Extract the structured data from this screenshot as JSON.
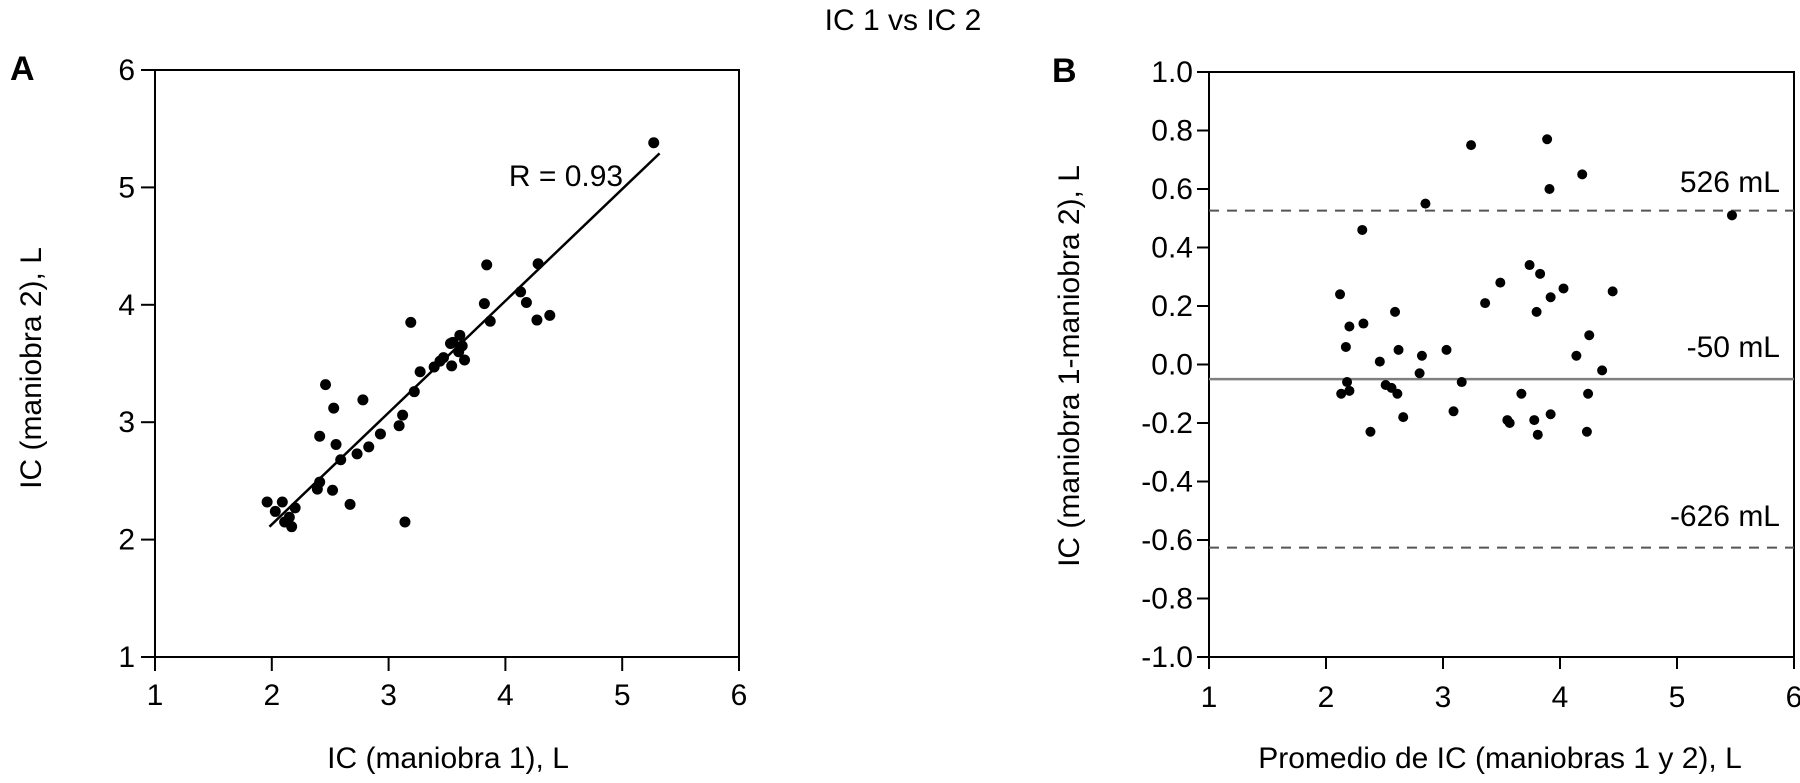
{
  "title": "IC 1 vs IC 2",
  "panels": [
    {
      "letter": "A",
      "xlabel": "IC (maniobra 1), L",
      "ylabel": "IC (maniobra 2), L",
      "annotation": "R = 0.93"
    },
    {
      "letter": "B",
      "xlabel": "Promedio de IC (maniobras 1 y 2), L",
      "ylabel": "IC (maniobra 1-maniobra 2), L",
      "ref_label_upper": "526 mL",
      "ref_label_mean": "-50 mL",
      "ref_label_lower": "-626 mL"
    }
  ],
  "colors": {
    "points": "#000000",
    "axis": "#000000",
    "regression_line": "#000000",
    "mean_line": "#7f7f7f",
    "limit_lines": "#555555"
  },
  "chart_data": [
    {
      "type": "scatter",
      "panel": "A",
      "title": "IC 1 vs IC 2",
      "xlabel": "IC (maniobra 1), L",
      "ylabel": "IC (maniobra 2), L",
      "xlim": [
        1,
        6
      ],
      "ylim": [
        1,
        6
      ],
      "x_tick_labels": [
        "1",
        "2",
        "3",
        "4",
        "5",
        "6"
      ],
      "y_tick_labels": [
        "1",
        "2",
        "3",
        "4",
        "5",
        "6"
      ],
      "grid": false,
      "annotation": {
        "text": "R = 0.93",
        "r_value": 0.93
      },
      "regression_line": {
        "x1": 1.98,
        "y1": 2.11,
        "x2": 5.32,
        "y2": 5.29
      },
      "points": [
        [
          1.96,
          2.32
        ],
        [
          2.03,
          2.24
        ],
        [
          2.09,
          2.32
        ],
        [
          2.11,
          2.15
        ],
        [
          2.15,
          2.19
        ],
        [
          2.17,
          2.11
        ],
        [
          2.2,
          2.27
        ],
        [
          2.39,
          2.43
        ],
        [
          2.41,
          2.49
        ],
        [
          2.41,
          2.88
        ],
        [
          2.46,
          3.32
        ],
        [
          2.52,
          2.42
        ],
        [
          2.53,
          3.12
        ],
        [
          2.55,
          2.81
        ],
        [
          2.59,
          2.68
        ],
        [
          2.67,
          2.3
        ],
        [
          2.73,
          2.73
        ],
        [
          2.78,
          3.19
        ],
        [
          2.83,
          2.79
        ],
        [
          2.93,
          2.9
        ],
        [
          3.09,
          2.97
        ],
        [
          3.12,
          3.06
        ],
        [
          3.14,
          2.15
        ],
        [
          3.22,
          3.26
        ],
        [
          3.27,
          3.43
        ],
        [
          3.19,
          3.85
        ],
        [
          3.39,
          3.47
        ],
        [
          3.44,
          3.52
        ],
        [
          3.47,
          3.55
        ],
        [
          3.53,
          3.67
        ],
        [
          3.54,
          3.48
        ],
        [
          3.55,
          3.68
        ],
        [
          3.6,
          3.6
        ],
        [
          3.61,
          3.74
        ],
        [
          3.63,
          3.65
        ],
        [
          3.65,
          3.53
        ],
        [
          3.82,
          4.01
        ],
        [
          3.84,
          4.34
        ],
        [
          3.87,
          3.86
        ],
        [
          4.13,
          4.11
        ],
        [
          4.18,
          4.02
        ],
        [
          4.27,
          3.87
        ],
        [
          4.28,
          4.35
        ],
        [
          4.38,
          3.91
        ],
        [
          5.27,
          5.38
        ]
      ]
    },
    {
      "type": "scatter",
      "panel": "B",
      "title": "IC 1 vs IC 2",
      "xlabel": "Promedio de IC (maniobras 1 y 2), L",
      "ylabel": "IC (maniobra 1-maniobra 2), L",
      "xlim": [
        1,
        6
      ],
      "ylim": [
        -1.0,
        1.0
      ],
      "x_tick_labels": [
        "1",
        "2",
        "3",
        "4",
        "5",
        "6"
      ],
      "y_tick_labels": [
        "1.0",
        "0.8",
        "0.6",
        "0.4",
        "0.2",
        "0.0",
        "-0.2",
        "-0.4",
        "-0.6",
        "-0.8",
        "-1.0"
      ],
      "grid": false,
      "reference_lines": [
        {
          "value": 0.526,
          "style": "dashed",
          "label": "526 mL"
        },
        {
          "value": -0.05,
          "style": "solid",
          "label": "-50 mL"
        },
        {
          "value": -0.626,
          "style": "dashed",
          "label": "-626 mL"
        }
      ],
      "points": [
        [
          3.24,
          0.75
        ],
        [
          3.89,
          0.77
        ],
        [
          4.19,
          0.65
        ],
        [
          3.91,
          0.6
        ],
        [
          2.85,
          0.55
        ],
        [
          5.47,
          0.51
        ],
        [
          2.31,
          0.46
        ],
        [
          3.74,
          0.34
        ],
        [
          3.83,
          0.31
        ],
        [
          3.49,
          0.28
        ],
        [
          4.03,
          0.26
        ],
        [
          4.45,
          0.25
        ],
        [
          3.92,
          0.23
        ],
        [
          3.36,
          0.21
        ],
        [
          2.12,
          0.24
        ],
        [
          3.8,
          0.18
        ],
        [
          2.59,
          0.18
        ],
        [
          2.32,
          0.14
        ],
        [
          2.2,
          0.13
        ],
        [
          4.25,
          0.1
        ],
        [
          2.17,
          0.06
        ],
        [
          2.62,
          0.05
        ],
        [
          3.03,
          0.05
        ],
        [
          2.82,
          0.03
        ],
        [
          4.14,
          0.03
        ],
        [
          2.46,
          0.01
        ],
        [
          2.8,
          -0.03
        ],
        [
          4.36,
          -0.02
        ],
        [
          2.18,
          -0.06
        ],
        [
          3.16,
          -0.06
        ],
        [
          2.51,
          -0.07
        ],
        [
          2.2,
          -0.09
        ],
        [
          2.56,
          -0.08
        ],
        [
          2.13,
          -0.1
        ],
        [
          2.61,
          -0.1
        ],
        [
          3.67,
          -0.1
        ],
        [
          4.24,
          -0.1
        ],
        [
          3.09,
          -0.16
        ],
        [
          2.66,
          -0.18
        ],
        [
          3.92,
          -0.17
        ],
        [
          3.55,
          -0.19
        ],
        [
          3.57,
          -0.2
        ],
        [
          3.78,
          -0.19
        ],
        [
          3.81,
          -0.24
        ],
        [
          2.38,
          -0.23
        ],
        [
          4.23,
          -0.23
        ]
      ]
    }
  ]
}
